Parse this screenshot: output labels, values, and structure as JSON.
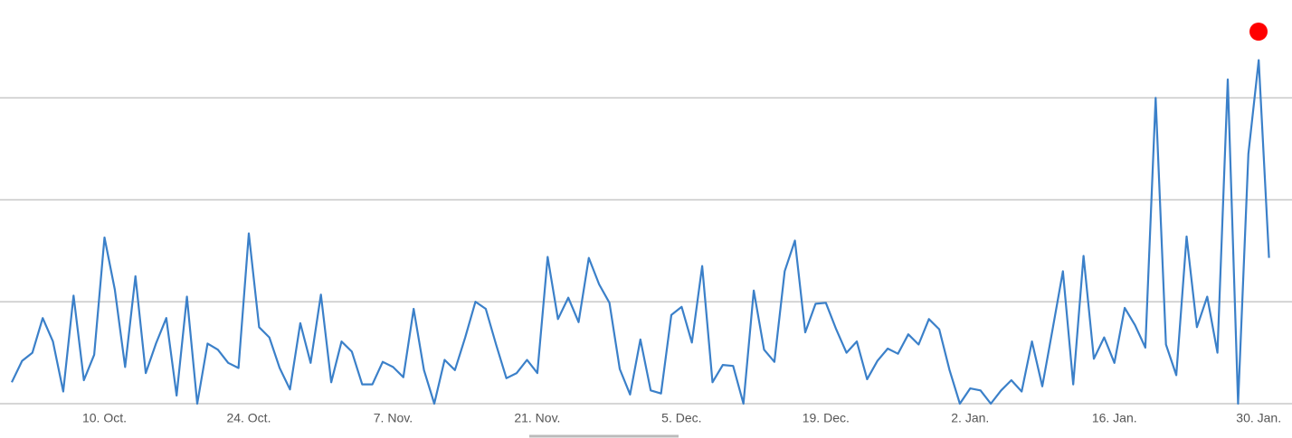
{
  "chart_data": {
    "type": "line",
    "x": [
      0,
      1,
      2,
      3,
      4,
      5,
      6,
      7,
      8,
      9,
      10,
      11,
      12,
      13,
      14,
      15,
      16,
      17,
      18,
      19,
      20,
      21,
      22,
      23,
      24,
      25,
      26,
      27,
      28,
      29,
      30,
      31,
      32,
      33,
      34,
      35,
      36,
      37,
      38,
      39,
      40,
      41,
      42,
      43,
      44,
      45,
      46,
      47,
      48,
      49,
      50,
      51,
      52,
      53,
      54,
      55,
      56,
      57,
      58,
      59,
      60,
      61,
      62,
      63,
      64,
      65,
      66,
      67,
      68,
      69,
      70,
      71,
      72,
      73,
      74,
      75,
      76,
      77,
      78,
      79,
      80,
      81,
      82,
      83,
      84,
      85,
      86,
      87,
      88,
      89,
      90,
      91,
      92,
      93,
      94,
      95,
      96,
      97,
      98,
      99,
      100,
      101,
      102,
      103,
      104,
      105,
      106,
      107,
      108,
      109,
      110,
      111,
      112,
      113,
      114,
      115,
      116,
      117,
      118,
      119,
      120,
      121,
      122
    ],
    "series": [
      {
        "color": "#3b80c9",
        "values": [
          0.21,
          0.42,
          0.5,
          0.84,
          0.61,
          0.12,
          1.06,
          0.23,
          0.48,
          1.63,
          1.12,
          0.36,
          1.25,
          0.3,
          0.59,
          0.84,
          0.08,
          1.05,
          0,
          0.59,
          0.53,
          0.4,
          0.35,
          1.67,
          0.75,
          0.65,
          0.35,
          0.14,
          0.79,
          0.4,
          1.07,
          0.21,
          0.61,
          0.51,
          0.19,
          0.19,
          0.41,
          0.36,
          0.26,
          0.93,
          0.33,
          0,
          0.43,
          0.33,
          0.65,
          1.0,
          0.93,
          0.58,
          0.25,
          0.3,
          0.43,
          0.3,
          1.44,
          0.83,
          1.04,
          0.8,
          1.43,
          1.17,
          0.99,
          0.34,
          0.09,
          0.63,
          0.13,
          0.1,
          0.87,
          0.95,
          0.6,
          1.35,
          0.21,
          0.38,
          0.37,
          0,
          1.11,
          0.53,
          0.41,
          1.3,
          1.6,
          0.7,
          0.98,
          0.99,
          0.73,
          0.5,
          0.61,
          0.24,
          0.42,
          0.54,
          0.49,
          0.68,
          0.58,
          0.83,
          0.73,
          0.33,
          0,
          0.15,
          0.13,
          0,
          0.13,
          0.23,
          0.12,
          0.61,
          0.17,
          0.73,
          1.3,
          0.19,
          1.45,
          0.44,
          0.65,
          0.4,
          0.94,
          0.77,
          0.55,
          3.0,
          0.58,
          0.28,
          1.64,
          0.75,
          1.05,
          0.5,
          3.18,
          0,
          2.45,
          3.37,
          1.43
        ]
      }
    ],
    "xlim": [
      -1.14,
      124.23
    ],
    "xticks": [
      {
        "value": 9,
        "label": "10. Oct."
      },
      {
        "value": 23,
        "label": "24. Oct."
      },
      {
        "value": 37,
        "label": "7. Nov."
      },
      {
        "value": 51,
        "label": "21. Nov."
      },
      {
        "value": 65,
        "label": "5. Dec."
      },
      {
        "value": 79,
        "label": "19. Dec."
      },
      {
        "value": 93,
        "label": "2. Jan."
      },
      {
        "value": 107,
        "label": "16. Jan."
      },
      {
        "value": 121,
        "label": "30. Jan."
      }
    ],
    "ylim": [
      0,
      3.96
    ],
    "yticks": [
      0,
      1,
      2,
      3
    ],
    "grid": true
  }
}
